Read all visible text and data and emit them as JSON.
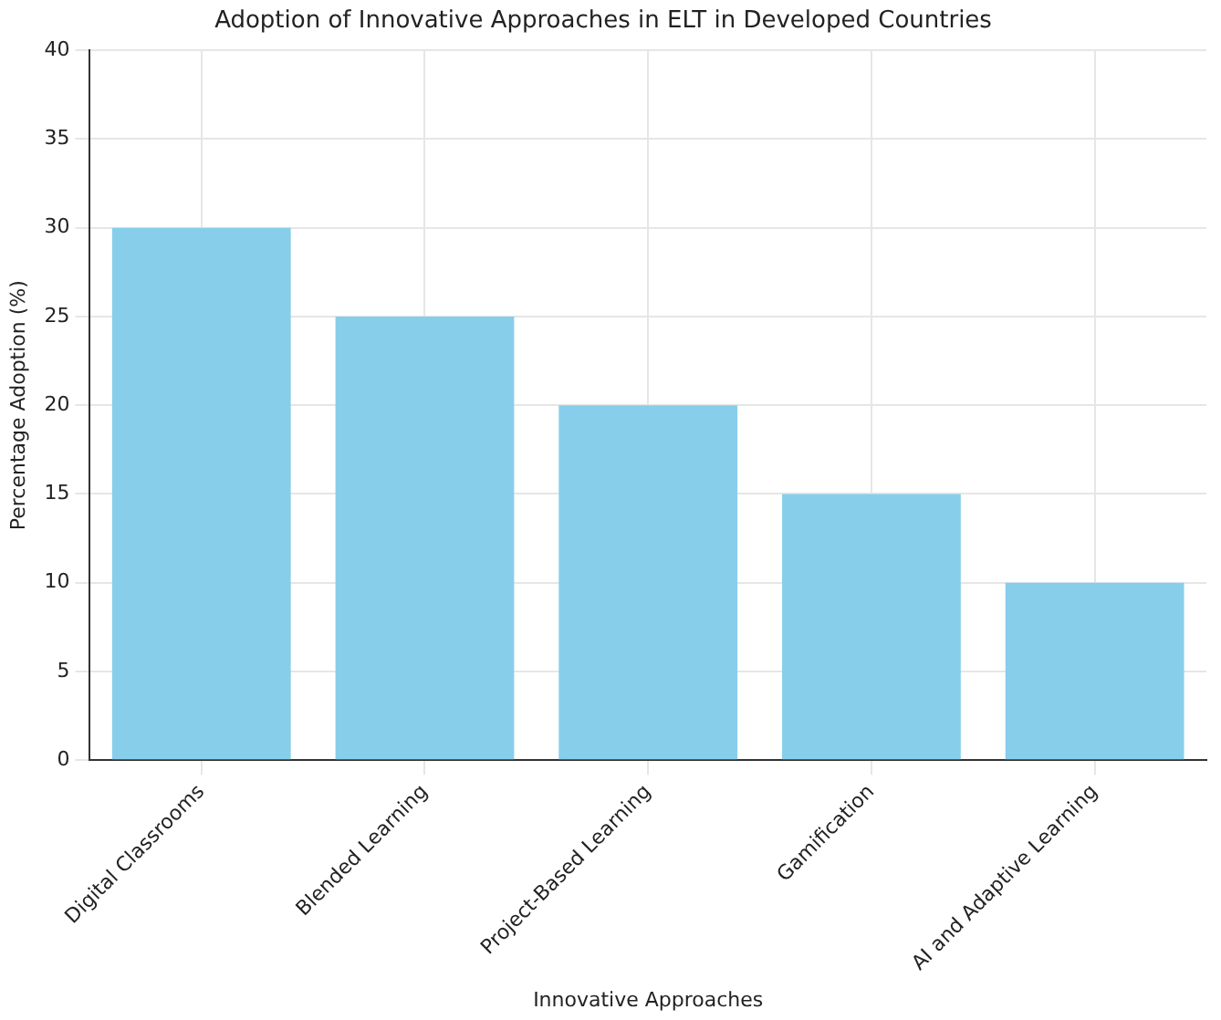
{
  "chart_data": {
    "type": "bar",
    "title": "Adoption of Innovative Approaches in ELT in Developed Countries",
    "xlabel": "Innovative Approaches",
    "ylabel": "Percentage Adoption (%)",
    "categories": [
      "Digital Classrooms",
      "Blended Learning",
      "Project-Based Learning",
      "Gamification",
      "AI and Adaptive Learning"
    ],
    "values": [
      30,
      25,
      20,
      15,
      10
    ],
    "color": "#87ceeb",
    "ylim": [
      0,
      40
    ],
    "yticks": [
      0,
      5,
      10,
      15,
      20,
      25,
      30,
      35,
      40
    ],
    "grid": true
  }
}
